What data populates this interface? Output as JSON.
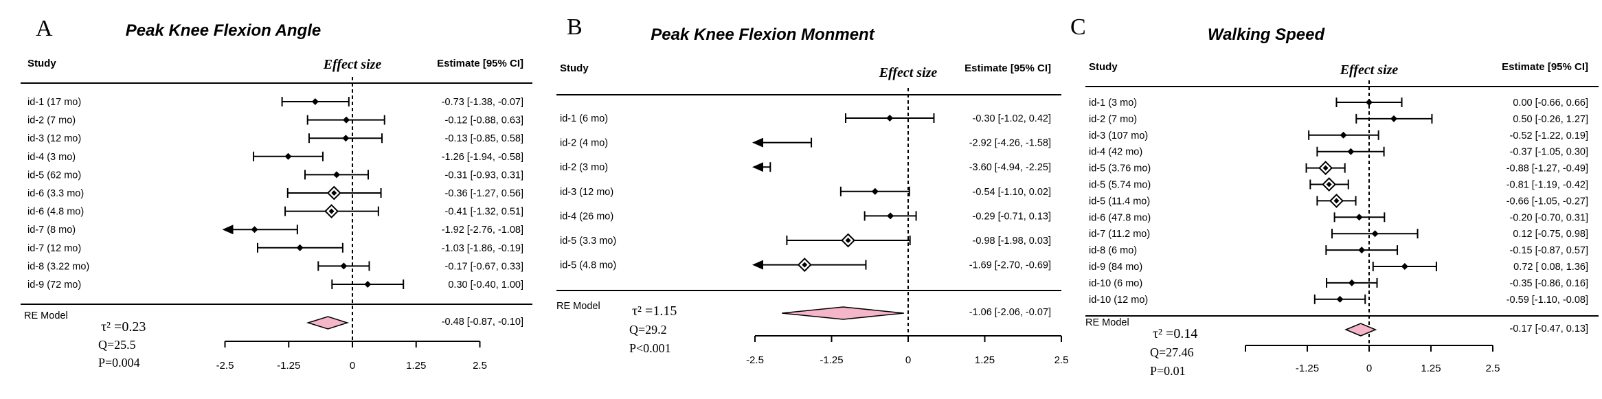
{
  "chart_data": [
    {
      "type": "forest",
      "panel_label": "A",
      "title": "Peak Knee Flexion Angle",
      "study_header": "Study",
      "effect_header": "Effect size",
      "estimate_header": "Estimate [95% CI]",
      "xlim": [
        -2.5,
        2.5
      ],
      "ticks": [
        "-2.5",
        "-1.25",
        "0",
        "1.25",
        "2.5"
      ],
      "tick_values": [
        -2.5,
        -1.25,
        0,
        1.25,
        2.5
      ],
      "studies": [
        {
          "label": "id-1 (17 mo)",
          "est": -0.73,
          "lo": -1.38,
          "hi": -0.07,
          "marker": "dot",
          "text": "-0.73 [-1.38, -0.07]"
        },
        {
          "label": "id-2 (7 mo)",
          "est": -0.12,
          "lo": -0.88,
          "hi": 0.63,
          "marker": "dot",
          "text": "-0.12 [-0.88,  0.63]"
        },
        {
          "label": "id-3 (12 mo)",
          "est": -0.13,
          "lo": -0.85,
          "hi": 0.58,
          "marker": "dot",
          "text": "-0.13 [-0.85,  0.58]"
        },
        {
          "label": "id-4 (3 mo)",
          "est": -1.26,
          "lo": -1.94,
          "hi": -0.58,
          "marker": "dot",
          "text": "-1.26 [-1.94, -0.58]"
        },
        {
          "label": "id-5 (62 mo)",
          "est": -0.31,
          "lo": -0.93,
          "hi": 0.31,
          "marker": "dot",
          "text": "-0.31 [-0.93,  0.31]"
        },
        {
          "label": "id-6 (3.3 mo)",
          "est": -0.36,
          "lo": -1.27,
          "hi": 0.56,
          "marker": "diamond",
          "text": "-0.36 [-1.27,  0.56]"
        },
        {
          "label": "id-6 (4.8 mo)",
          "est": -0.41,
          "lo": -1.32,
          "hi": 0.51,
          "marker": "diamond",
          "text": "-0.41 [-1.32,  0.51]"
        },
        {
          "label": "id-7 (8 mo)",
          "est": -1.92,
          "lo": -2.76,
          "hi": -1.08,
          "marker": "dot",
          "text": "-1.92 [-2.76, -1.08]"
        },
        {
          "label": "id-7 (12 mo)",
          "est": -1.03,
          "lo": -1.86,
          "hi": -0.19,
          "marker": "dot",
          "text": "-1.03 [-1.86, -0.19]"
        },
        {
          "label": "id-8 (3.22 mo)",
          "est": -0.17,
          "lo": -0.67,
          "hi": 0.33,
          "marker": "dot",
          "text": "-0.17 [-0.67,  0.33]"
        },
        {
          "label": "id-9 (72 mo)",
          "est": 0.3,
          "lo": -0.4,
          "hi": 1.0,
          "marker": "dot",
          "text": "0.30 [-0.40,  1.00]"
        }
      ],
      "model": {
        "label": "RE Model",
        "est": -0.48,
        "lo": -0.87,
        "hi": -0.1,
        "text": "-0.48 [-0.87, -0.10]"
      },
      "stats": {
        "tau2": "τ² =0.23",
        "q": "Q=25.5",
        "p": "P=0.004"
      }
    },
    {
      "type": "forest",
      "panel_label": "B",
      "title": "Peak Knee Flexion Monment",
      "study_header": "Study",
      "effect_header": "Effect size",
      "estimate_header": "Estimate [95% CI]",
      "xlim": [
        -2.5,
        2.5
      ],
      "ticks": [
        "-2.5",
        "-1.25",
        "0",
        "1.25",
        "2.5"
      ],
      "tick_values": [
        -2.5,
        -1.25,
        0,
        1.25,
        2.5
      ],
      "studies": [
        {
          "label": "id-1 (6 mo)",
          "est": -0.3,
          "lo": -1.02,
          "hi": 0.42,
          "marker": "dot",
          "text": "-0.30 [-1.02,  0.42]"
        },
        {
          "label": "id-2 (4 mo)",
          "est": -2.92,
          "lo": -4.26,
          "hi": -1.58,
          "marker": "dot",
          "text": "-2.92 [-4.26, -1.58]"
        },
        {
          "label": "id-2 (3 mo)",
          "est": -3.6,
          "lo": -4.94,
          "hi": -2.25,
          "marker": "dot",
          "text": "-3.60 [-4.94, -2.25]"
        },
        {
          "label": "id-3 (12 mo)",
          "est": -0.54,
          "lo": -1.1,
          "hi": 0.02,
          "marker": "dot",
          "text": "-0.54 [-1.10,  0.02]"
        },
        {
          "label": "id-4 (26 mo)",
          "est": -0.29,
          "lo": -0.71,
          "hi": 0.13,
          "marker": "dot",
          "text": "-0.29 [-0.71,  0.13]"
        },
        {
          "label": "id-5 (3.3 mo)",
          "est": -0.98,
          "lo": -1.98,
          "hi": 0.03,
          "marker": "diamond",
          "text": "-0.98 [-1.98,  0.03]"
        },
        {
          "label": "id-5 (4.8 mo)",
          "est": -1.69,
          "lo": -2.7,
          "hi": -0.69,
          "marker": "diamond",
          "text": "-1.69 [-2.70, -0.69]"
        }
      ],
      "model": {
        "label": "RE Model",
        "est": -1.06,
        "lo": -2.06,
        "hi": -0.07,
        "text": "-1.06 [-2.06, -0.07]"
      },
      "stats": {
        "tau2": "τ² =1.15",
        "q": "Q=29.2",
        "p": "P<0.001"
      }
    },
    {
      "type": "forest",
      "panel_label": "C",
      "title": "Walking Speed",
      "study_header": "Study",
      "effect_header": "Effect size",
      "estimate_header": "Estimate [95% CI]",
      "xlim": [
        -2.5,
        2.5
      ],
      "ticks": [
        "-1.25",
        "0",
        "1.25",
        "2.5"
      ],
      "tick_values": [
        -1.25,
        0,
        1.25,
        2.5
      ],
      "studies": [
        {
          "label": "id-1 (3 mo)",
          "est": 0.0,
          "lo": -0.66,
          "hi": 0.66,
          "marker": "dot",
          "text": "0.00 [-0.66,  0.66]"
        },
        {
          "label": "id-2 (7 mo)",
          "est": 0.5,
          "lo": -0.26,
          "hi": 1.27,
          "marker": "dot",
          "text": "0.50 [-0.26,  1.27]"
        },
        {
          "label": "id-3 (107 mo)",
          "est": -0.52,
          "lo": -1.22,
          "hi": 0.19,
          "marker": "dot",
          "text": "-0.52 [-1.22,  0.19]"
        },
        {
          "label": "id-4 (42 mo)",
          "est": -0.37,
          "lo": -1.05,
          "hi": 0.3,
          "marker": "dot",
          "text": "-0.37 [-1.05,  0.30]"
        },
        {
          "label": "id-5 (3.76 mo)",
          "est": -0.88,
          "lo": -1.27,
          "hi": -0.49,
          "marker": "diamond",
          "text": "-0.88 [-1.27, -0.49]"
        },
        {
          "label": "id-5 (5.74 mo)",
          "est": -0.81,
          "lo": -1.19,
          "hi": -0.42,
          "marker": "diamond",
          "text": "-0.81 [-1.19, -0.42]"
        },
        {
          "label": "id-5 (11.4 mo)",
          "est": -0.66,
          "lo": -1.05,
          "hi": -0.27,
          "marker": "diamond",
          "text": "-0.66 [-1.05, -0.27]"
        },
        {
          "label": "id-6 (47.8 mo)",
          "est": -0.2,
          "lo": -0.7,
          "hi": 0.31,
          "marker": "dot",
          "text": "-0.20 [-0.70,  0.31]"
        },
        {
          "label": "id-7 (11.2 mo)",
          "est": 0.12,
          "lo": -0.75,
          "hi": 0.98,
          "marker": "dot",
          "text": "0.12 [-0.75,  0.98]"
        },
        {
          "label": "id-8 (6 mo)",
          "est": -0.15,
          "lo": -0.87,
          "hi": 0.57,
          "marker": "dot",
          "text": "-0.15 [-0.87,  0.57]"
        },
        {
          "label": "id-9 (84 mo)",
          "est": 0.72,
          "lo": 0.08,
          "hi": 1.36,
          "marker": "dot",
          "text": "0.72 [ 0.08,  1.36]"
        },
        {
          "label": "id-10 (6 mo)",
          "est": -0.35,
          "lo": -0.86,
          "hi": 0.16,
          "marker": "dot",
          "text": "-0.35 [-0.86,  0.16]"
        },
        {
          "label": "id-10 (12 mo)",
          "est": -0.59,
          "lo": -1.1,
          "hi": -0.08,
          "marker": "dot",
          "text": "-0.59 [-1.10, -0.08]"
        }
      ],
      "model": {
        "label": "RE Model",
        "est": -0.17,
        "lo": -0.47,
        "hi": 0.13,
        "text": "-0.17 [-0.47,  0.13]"
      },
      "stats": {
        "tau2": "τ² =0.14",
        "q": "Q=27.46",
        "p": "P=0.01"
      }
    }
  ],
  "colors": {
    "ink": "#000000",
    "summary_fill": "#f4b6c8",
    "background": "#ffffff"
  }
}
